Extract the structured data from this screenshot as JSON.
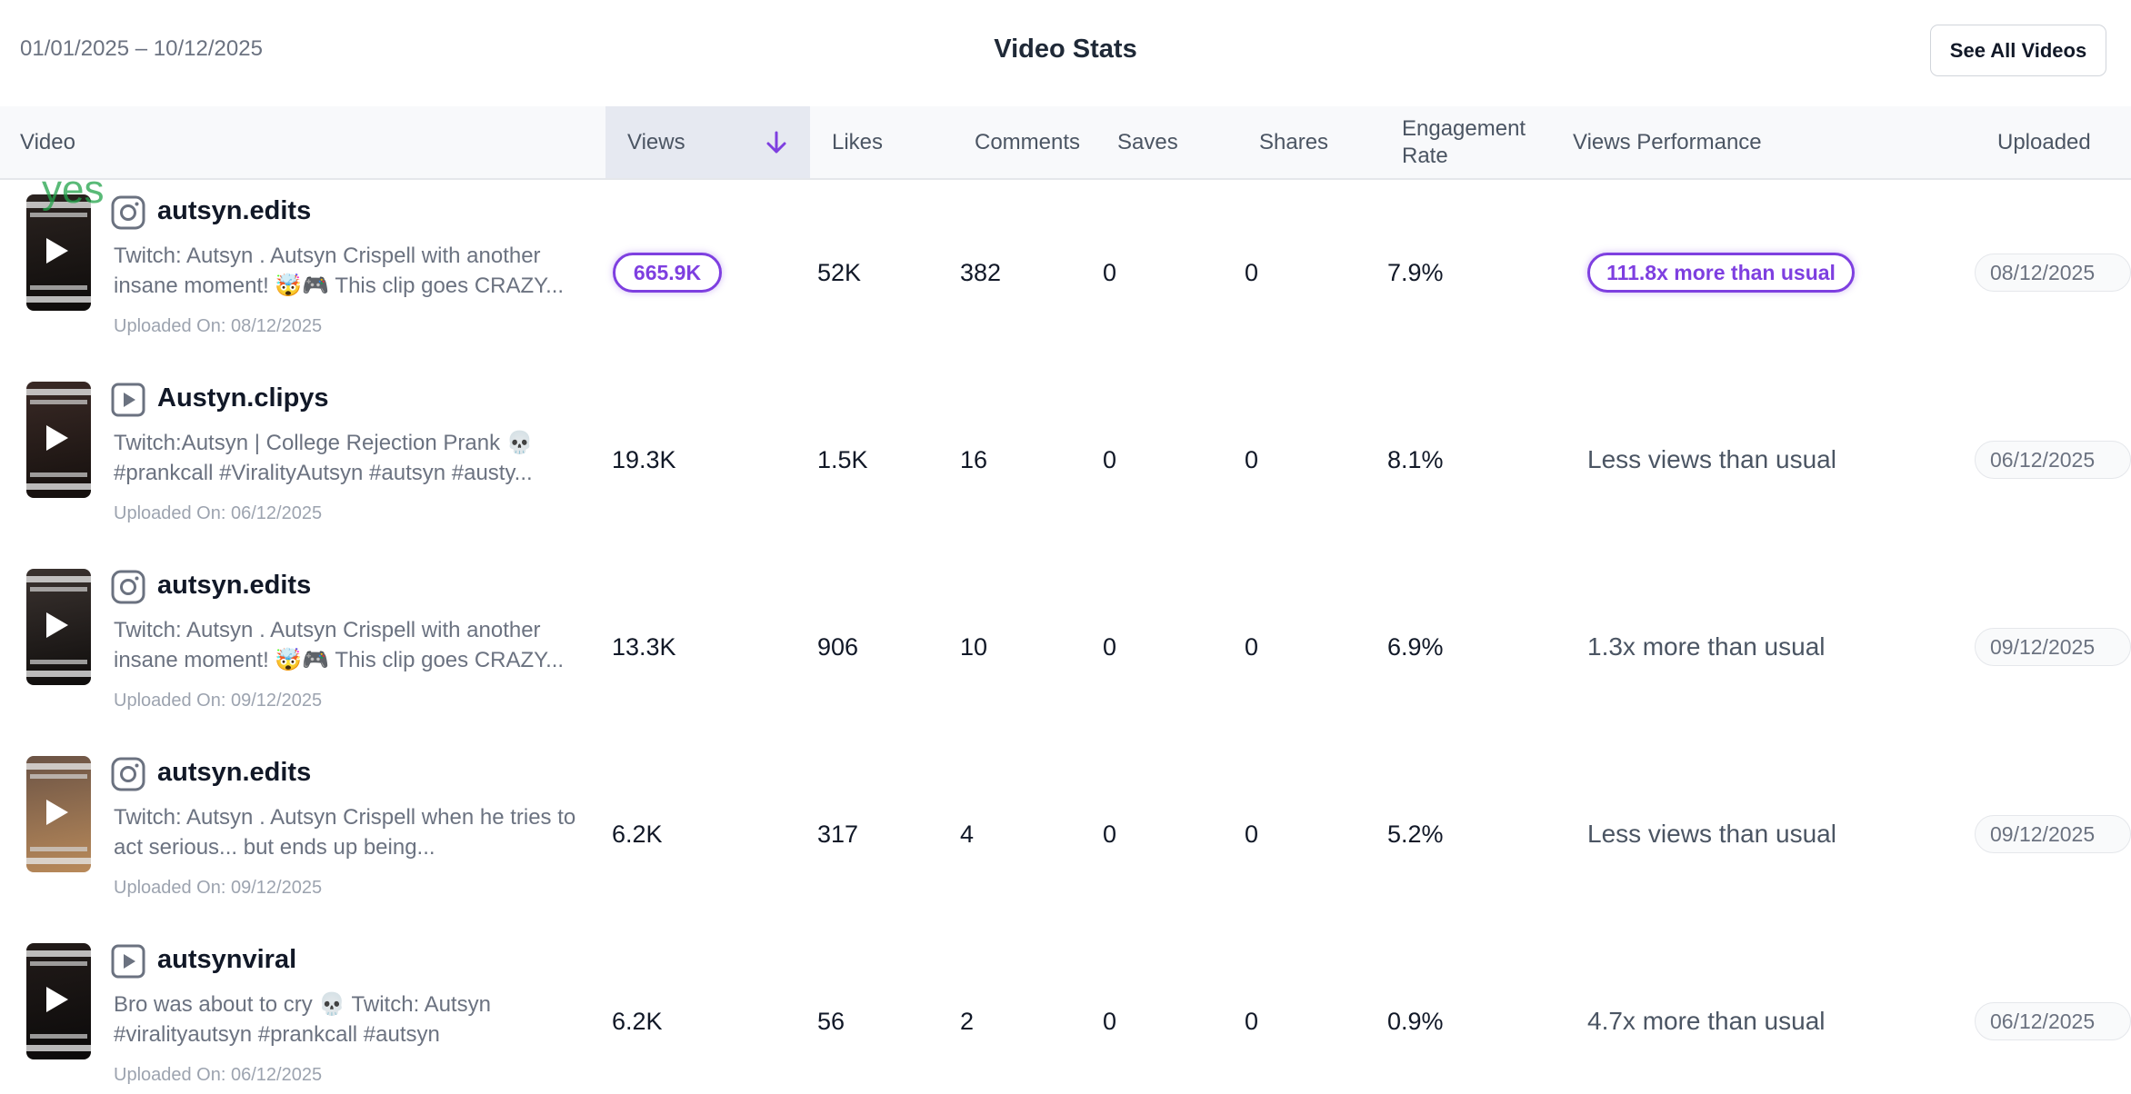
{
  "header": {
    "date_range": "01/01/2025 – 10/12/2025",
    "title": "Video Stats",
    "see_all_label": "See All Videos"
  },
  "columns": {
    "video": "Video",
    "views": "Views",
    "likes": "Likes",
    "comments": "Comments",
    "saves": "Saves",
    "shares": "Shares",
    "engagement": "Engagement Rate",
    "performance": "Views Performance",
    "uploaded": "Uploaded"
  },
  "overlay_text": "yes",
  "accent_color": "#7e3fe0",
  "rows": [
    {
      "platform_icon": "instagram-icon",
      "channel": "autsyn.edits",
      "description": "Twitch: Autsyn . Autsyn Crispell with another insane moment! 🤯🎮 This clip goes CRAZY...",
      "uploaded_on": "Uploaded On: 08/12/2025",
      "views": "665.9K",
      "likes": "52K",
      "comments": "382",
      "saves": "0",
      "shares": "0",
      "engagement": "7.9%",
      "performance": "111.8x more than usual",
      "date": "08/12/2025"
    },
    {
      "platform_icon": "video-play-icon",
      "channel": "Austyn.clipys",
      "description": "Twitch:Autsyn | College Rejection Prank 💀 #prankcall #ViralityAutsyn #autsyn #austy...",
      "uploaded_on": "Uploaded On: 06/12/2025",
      "views": "19.3K",
      "likes": "1.5K",
      "comments": "16",
      "saves": "0",
      "shares": "0",
      "engagement": "8.1%",
      "performance": "Less views than usual",
      "date": "06/12/2025"
    },
    {
      "platform_icon": "instagram-icon",
      "channel": "autsyn.edits",
      "description": "Twitch: Autsyn . Autsyn Crispell with another insane moment! 🤯🎮 This clip goes CRAZY...",
      "uploaded_on": "Uploaded On: 09/12/2025",
      "views": "13.3K",
      "likes": "906",
      "comments": "10",
      "saves": "0",
      "shares": "0",
      "engagement": "6.9%",
      "performance": "1.3x more than usual",
      "date": "09/12/2025"
    },
    {
      "platform_icon": "instagram-icon",
      "channel": "autsyn.edits",
      "description": "Twitch: Autsyn . Autsyn Crispell when he tries to act serious... but ends up being...",
      "uploaded_on": "Uploaded On: 09/12/2025",
      "views": "6.2K",
      "likes": "317",
      "comments": "4",
      "saves": "0",
      "shares": "0",
      "engagement": "5.2%",
      "performance": "Less views than usual",
      "date": "09/12/2025"
    },
    {
      "platform_icon": "video-play-icon",
      "channel": "autsynviral",
      "description": "Bro was about to cry 💀 Twitch: Autsyn #viralityautsyn #prankcall #autsyn",
      "uploaded_on": "Uploaded On: 06/12/2025",
      "views": "6.2K",
      "likes": "56",
      "comments": "2",
      "saves": "0",
      "shares": "0",
      "engagement": "0.9%",
      "performance": "4.7x more than usual",
      "date": "06/12/2025"
    }
  ]
}
